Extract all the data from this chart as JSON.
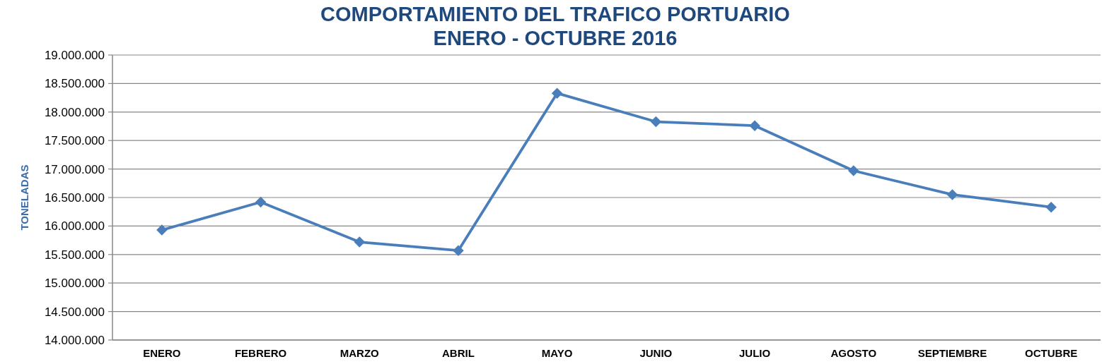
{
  "chart_data": {
    "type": "line",
    "title": "COMPORTAMIENTO DEL TRAFICO PORTUARIO",
    "subtitle": "ENERO - OCTUBRE 2016",
    "ylabel": "TONELADAS",
    "categories": [
      "ENERO",
      "FEBRERO",
      "MARZO",
      "ABRIL",
      "MAYO",
      "JUNIO",
      "JULIO",
      "AGOSTO",
      "SEPTIEMBRE",
      "OCTUBRE"
    ],
    "series": [
      {
        "color": "#4a7ebb",
        "values": [
          15930000,
          16420000,
          15720000,
          15570000,
          18330000,
          17830000,
          17760000,
          16970000,
          16550000,
          16330000
        ]
      }
    ],
    "ylim": [
      14000000,
      19000000
    ],
    "yticks": [
      {
        "value": 14000000,
        "label": "14.000.000"
      },
      {
        "value": 14500000,
        "label": "14.500.000"
      },
      {
        "value": 15000000,
        "label": "15.000.000"
      },
      {
        "value": 15500000,
        "label": "15.500.000"
      },
      {
        "value": 16000000,
        "label": "16.000.000"
      },
      {
        "value": 16500000,
        "label": "16.500.000"
      },
      {
        "value": 17000000,
        "label": "17.000.000"
      },
      {
        "value": 17500000,
        "label": "17.500.000"
      },
      {
        "value": 18000000,
        "label": "18.000.000"
      },
      {
        "value": 18500000,
        "label": "18.500.000"
      },
      {
        "value": 19000000,
        "label": "19.000.000"
      }
    ],
    "grid": "y",
    "marker": "diamond"
  }
}
